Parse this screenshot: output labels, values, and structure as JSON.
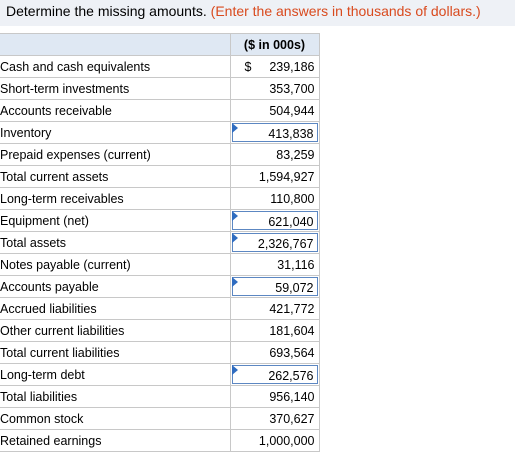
{
  "instruction": {
    "main": "Determine the missing amounts.",
    "hint": "(Enter the answers in thousands of dollars.)"
  },
  "table": {
    "column_header": "($ in 000s)",
    "currency_symbol": "$",
    "rows": [
      {
        "label": "Cash and cash equivalents",
        "value": "239,186",
        "is_input": false
      },
      {
        "label": "Short-term investments",
        "value": "353,700",
        "is_input": false
      },
      {
        "label": "Accounts receivable",
        "value": "504,944",
        "is_input": false
      },
      {
        "label": "Inventory",
        "value": "413,838",
        "is_input": true
      },
      {
        "label": "Prepaid expenses (current)",
        "value": "83,259",
        "is_input": false
      },
      {
        "label": "Total current assets",
        "value": "1,594,927",
        "is_input": false
      },
      {
        "label": "Long-term receivables",
        "value": "110,800",
        "is_input": false
      },
      {
        "label": "Equipment (net)",
        "value": "621,040",
        "is_input": true
      },
      {
        "label": "Total assets",
        "value": "2,326,767",
        "is_input": true
      },
      {
        "label": "Notes payable (current)",
        "value": "31,116",
        "is_input": false
      },
      {
        "label": "Accounts payable",
        "value": "59,072",
        "is_input": true
      },
      {
        "label": "Accrued liabilities",
        "value": "421,772",
        "is_input": false
      },
      {
        "label": "Other current liabilities",
        "value": "181,604",
        "is_input": false
      },
      {
        "label": "Total current liabilities",
        "value": "693,564",
        "is_input": false
      },
      {
        "label": "Long-term debt",
        "value": "262,576",
        "is_input": true
      },
      {
        "label": "Total liabilities",
        "value": "956,140",
        "is_input": false
      },
      {
        "label": "Common stock",
        "value": "370,627",
        "is_input": false
      },
      {
        "label": "Retained earnings",
        "value": "1,000,000",
        "is_input": false
      }
    ]
  }
}
